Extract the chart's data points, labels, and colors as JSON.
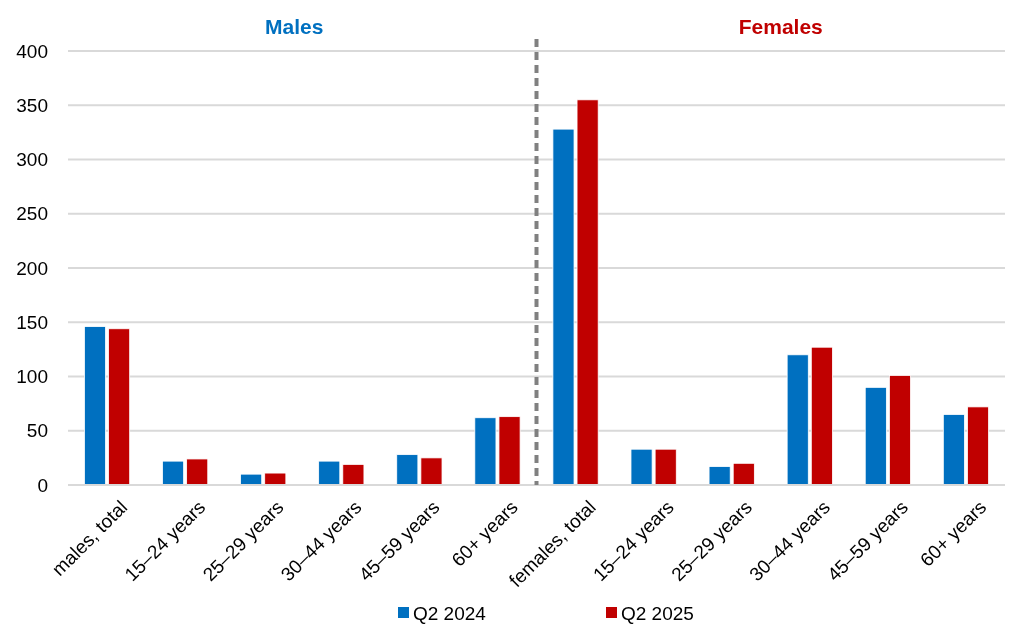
{
  "chart_data": {
    "type": "bar",
    "categories": [
      "males, total",
      "15–24 years",
      "25–29 years",
      "30–44 years",
      "45–59 years",
      "60+ years",
      "females, total",
      "15–24 years",
      "25–29 years",
      "30–44 years",
      "45–59 years",
      "60+ years"
    ],
    "series": [
      {
        "name": "Q2 2024",
        "color": "#0070c0",
        "values": [
          146,
          22,
          10,
          22,
          28,
          62,
          328,
          33,
          17,
          120,
          90,
          65
        ]
      },
      {
        "name": "Q2 2025",
        "color": "#c00000",
        "values": [
          144,
          24,
          11,
          19,
          25,
          63,
          355,
          33,
          20,
          127,
          101,
          72
        ]
      }
    ],
    "ylim": [
      0,
      400
    ],
    "yticks": [
      0,
      50,
      100,
      150,
      200,
      250,
      300,
      350,
      400
    ],
    "grid": "y",
    "legend": "bottom",
    "annotations": [
      "Males",
      "Females"
    ]
  }
}
